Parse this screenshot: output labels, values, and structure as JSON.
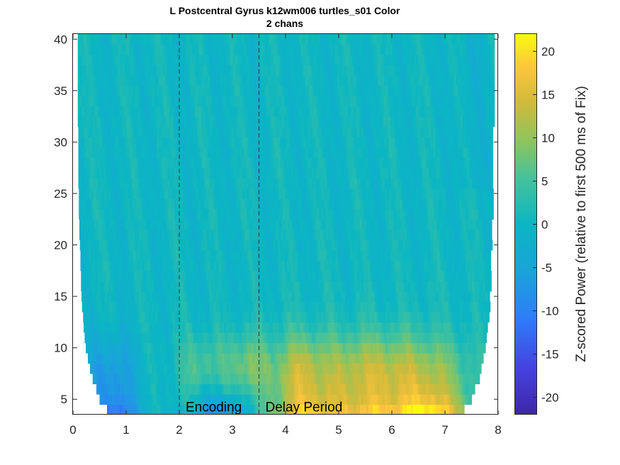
{
  "chart_data": {
    "type": "heatmap",
    "title": "L Postcentral Gyrus k12wm006 turtles_s01 Color",
    "subtitle": "2 chans",
    "xlabel": "",
    "ylabel": "",
    "xlim": [
      0,
      8
    ],
    "ylim": [
      3.5,
      40.5
    ],
    "x_ticks": [
      "0",
      "1",
      "2",
      "3",
      "4",
      "5",
      "6",
      "7",
      "8"
    ],
    "y_ticks": [
      "5",
      "10",
      "15",
      "20",
      "25",
      "30",
      "35",
      "40"
    ],
    "colorbar": {
      "label": "Z-scored Power (relative to first 500 ms of Fix)",
      "range": [
        -22,
        22
      ],
      "ticks": [
        "-20",
        "-15",
        "-10",
        "-5",
        "0",
        "5",
        "10",
        "15",
        "20"
      ],
      "colormap": "parula"
    },
    "event_lines": [
      {
        "x": 2.0,
        "style": "dashed"
      },
      {
        "x": 3.5,
        "style": "dashed"
      }
    ],
    "annotations": [
      {
        "text": "Encoding",
        "x": 2.12,
        "y": 4.3
      },
      {
        "text": "Delay Period",
        "x": 3.62,
        "y": 4.3
      }
    ],
    "frequency_rows_hz": [
      4,
      5,
      6,
      7,
      8,
      9,
      10,
      11,
      12,
      13,
      14,
      15,
      16,
      17,
      18,
      19,
      20,
      21,
      22,
      23,
      24,
      25,
      26,
      27,
      28,
      29,
      30,
      31,
      32,
      33,
      34,
      35,
      36,
      37,
      38,
      39,
      40
    ],
    "valid_time_start_s": [
      0.64,
      0.5,
      0.44,
      0.37,
      0.32,
      0.28,
      0.24,
      0.22,
      0.2,
      0.19,
      0.17,
      0.16,
      0.15,
      0.15,
      0.14,
      0.14,
      0.13,
      0.12,
      0.12,
      0.11,
      0.11,
      0.11,
      0.1,
      0.1,
      0.1,
      0.1,
      0.1,
      0.1,
      0.09,
      0.09,
      0.09,
      0.09,
      0.09,
      0.09,
      0.09,
      0.09,
      0.09
    ],
    "valid_time_end_s": [
      7.36,
      7.5,
      7.56,
      7.63,
      7.68,
      7.72,
      7.76,
      7.78,
      7.8,
      7.81,
      7.83,
      7.84,
      7.85,
      7.85,
      7.86,
      7.86,
      7.87,
      7.88,
      7.88,
      7.89,
      7.89,
      7.89,
      7.9,
      7.9,
      7.9,
      7.9,
      7.9,
      7.9,
      7.91,
      7.91,
      7.91,
      7.91,
      7.91,
      7.91,
      7.91,
      7.91,
      7.91
    ],
    "value_summary": {
      "4hz_5hz": "high positive (10-20) from ~4.5 to 7.3 s; strongly negative (-8 to -12) near 0.6-1.0 s and 2.5-3.2 s",
      "6hz_10hz": "positive (5-15) during 2-7 s, peaks near 3.2 s and 5-6.5 s",
      "11hz_40hz": "near zero (-3 to +3) with faint vertical striping"
    }
  }
}
